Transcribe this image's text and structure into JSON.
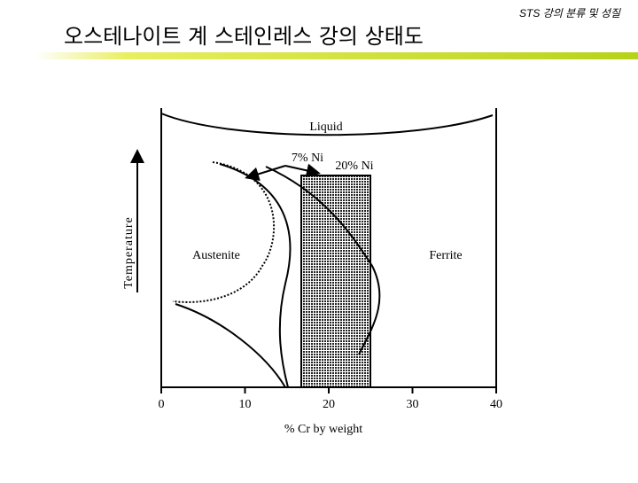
{
  "header": {
    "title": "오스테나이트 계 스테인레스 강의 상태도",
    "subtitle": "STS 강의 분류 및 성질"
  },
  "diagram": {
    "liquid": "Liquid",
    "ni7": "7% Ni",
    "ni20": "20% Ni",
    "austenite": "Austenite",
    "ferrite": "Ferrite",
    "y_label": "Temperature",
    "x_label": "% Cr by weight",
    "xlim": [
      0,
      40
    ],
    "xticks": [
      0,
      10,
      20,
      30,
      40
    ]
  }
}
